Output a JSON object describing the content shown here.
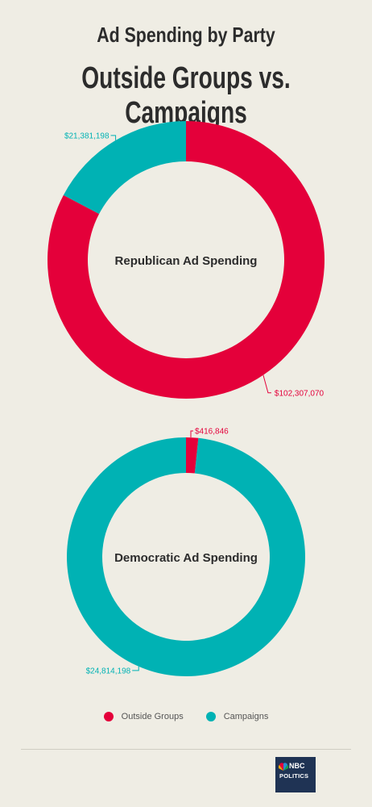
{
  "header": {
    "title_line1": "Ad Spending by Party",
    "title_line2": "Outside Groups vs. Campaigns"
  },
  "colors": {
    "outside_groups": "#e4003a",
    "campaigns": "#00b2b4"
  },
  "chart_data": [
    {
      "type": "pie",
      "donut": true,
      "title": "Republican Ad Spending",
      "slices": [
        {
          "label": "Outside Groups",
          "value": 102307070,
          "display": "$102,307,070"
        },
        {
          "label": "Campaigns",
          "value": 21381198,
          "display": "$21,381,198"
        }
      ]
    },
    {
      "type": "pie",
      "donut": true,
      "title": "Democratic Ad Spending",
      "slices": [
        {
          "label": "Outside Groups",
          "value": 416846,
          "display": "$416,846"
        },
        {
          "label": "Campaigns",
          "value": 24814198,
          "display": "$24,814,198"
        }
      ]
    }
  ],
  "legend": {
    "items": [
      {
        "label": "Outside Groups",
        "color": "#e4003a"
      },
      {
        "label": "Campaigns",
        "color": "#00b2b4"
      }
    ]
  },
  "footer": {
    "logo_line1": "NBC",
    "logo_line2": "POLITICS"
  }
}
